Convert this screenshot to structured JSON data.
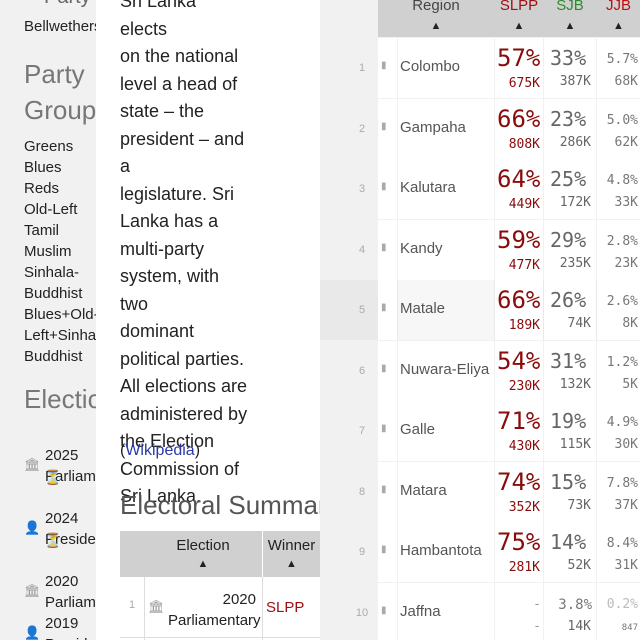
{
  "sidebar": {
    "top_label": "Party",
    "bellwethers": "Bellwethers",
    "party_groups_title_1": "Party",
    "party_groups_title_2": "Groups",
    "party_groups": [
      "Greens",
      "Blues",
      "Reds",
      "Old-Left",
      "Tamil",
      "Muslim",
      "Sinhala-",
      "Buddhist",
      "Blues+Old-",
      "Left+Sinhala",
      "Buddhist"
    ],
    "elections_title": "Elections",
    "elections": [
      {
        "year": "2025",
        "type": "Parliamentary",
        "icon": "parliament-icon"
      },
      {
        "year": "2024",
        "type": "Presidential",
        "icon": "person-icon"
      },
      {
        "year": "2020",
        "type": "Parliamentary",
        "icon": "parliament-icon"
      },
      {
        "year": "2019",
        "type": "Presidential",
        "icon": "person-icon"
      }
    ]
  },
  "center": {
    "body_lines": [
      "Sri Lanka elects",
      "on the national",
      "level a head of",
      "state – the",
      "president – and a",
      "legislature. Sri",
      "Lanka has a",
      "multi-party",
      "system, with two",
      "dominant",
      "political parties.",
      "All elections are",
      "administered by",
      "the Election",
      "Commission of",
      "Sri Lanka."
    ],
    "wiki_open": "(",
    "wiki_link": "Wikipedia",
    "wiki_close": ")",
    "summary_title": "Electoral Summary",
    "summary_headers": {
      "election": "Election",
      "winner": "Winner"
    },
    "summary_rows": [
      {
        "num": "1",
        "election_1": "2020",
        "election_2": "Parliamentary",
        "winner": "SLPP"
      }
    ]
  },
  "table": {
    "headers": {
      "region": "Region",
      "slpp": "SLPP",
      "sjb": "SJB",
      "jjb": "JJB"
    },
    "colors": {
      "slpp": "#a01010",
      "sjb": "#2e8b2e",
      "jjb": "#c01010"
    },
    "rows": [
      {
        "no": "1",
        "region": "Colombo",
        "slpp_pct": "57%",
        "slpp_n": "675K",
        "sjb_pct": "33%",
        "sjb_n": "387K",
        "jjb_pct": "5.7%",
        "jjb_n": "68K"
      },
      {
        "no": "2",
        "region": "Gampaha",
        "slpp_pct": "66%",
        "slpp_n": "808K",
        "sjb_pct": "23%",
        "sjb_n": "286K",
        "jjb_pct": "5.0%",
        "jjb_n": "62K"
      },
      {
        "no": "3",
        "region": "Kalutara",
        "slpp_pct": "64%",
        "slpp_n": "449K",
        "sjb_pct": "25%",
        "sjb_n": "172K",
        "jjb_pct": "4.8%",
        "jjb_n": "33K"
      },
      {
        "no": "4",
        "region": "Kandy",
        "slpp_pct": "59%",
        "slpp_n": "477K",
        "sjb_pct": "29%",
        "sjb_n": "235K",
        "jjb_pct": "2.8%",
        "jjb_n": "23K"
      },
      {
        "no": "5",
        "region": "Matale",
        "slpp_pct": "66%",
        "slpp_n": "189K",
        "sjb_pct": "26%",
        "sjb_n": "74K",
        "jjb_pct": "2.6%",
        "jjb_n": "8K"
      },
      {
        "no": "6",
        "region": "Nuwara-Eliya",
        "slpp_pct": "54%",
        "slpp_n": "230K",
        "sjb_pct": "31%",
        "sjb_n": "132K",
        "jjb_pct": "1.2%",
        "jjb_n": "5K"
      },
      {
        "no": "7",
        "region": "Galle",
        "slpp_pct": "71%",
        "slpp_n": "430K",
        "sjb_pct": "19%",
        "sjb_n": "115K",
        "jjb_pct": "4.9%",
        "jjb_n": "30K"
      },
      {
        "no": "8",
        "region": "Matara",
        "slpp_pct": "74%",
        "slpp_n": "352K",
        "sjb_pct": "15%",
        "sjb_n": "73K",
        "jjb_pct": "7.8%",
        "jjb_n": "37K"
      },
      {
        "no": "9",
        "region": "Hambantota",
        "slpp_pct": "75%",
        "slpp_n": "281K",
        "sjb_pct": "14%",
        "sjb_n": "52K",
        "jjb_pct": "8.4%",
        "jjb_n": "31K"
      },
      {
        "no": "10",
        "region": "Jaffna",
        "slpp_pct": "-",
        "slpp_n": "-",
        "sjb_pct": "3.8%",
        "sjb_n": "14K",
        "jjb_pct": "0.2%",
        "jjb_n": "847"
      }
    ]
  }
}
